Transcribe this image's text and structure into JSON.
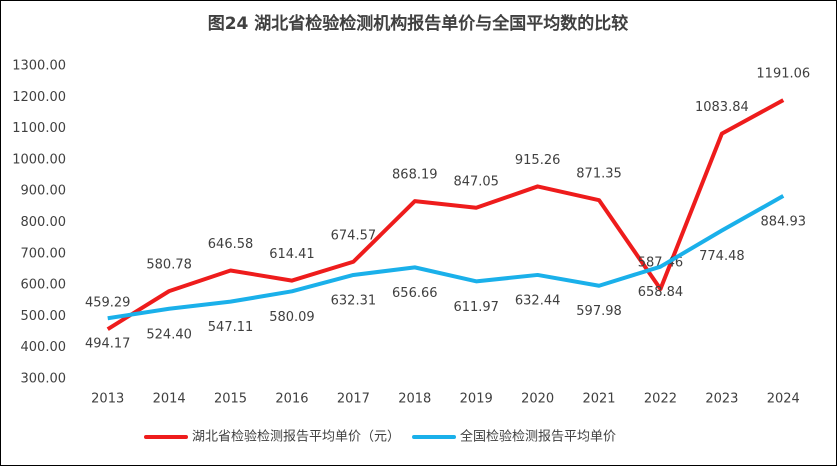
{
  "chart_data": {
    "type": "line",
    "title": "图24 湖北省检验检测机构报告单价与全国平均数的比较",
    "categories": [
      "2013",
      "2014",
      "2015",
      "2016",
      "2017",
      "2018",
      "2019",
      "2020",
      "2021",
      "2022",
      "2023",
      "2024"
    ],
    "series": [
      {
        "name": "湖北省检验检测报告平均单价（元）",
        "color": "#ee1c1c",
        "values": [
          459.29,
          580.78,
          646.58,
          614.41,
          674.57,
          868.19,
          847.05,
          915.26,
          871.35,
          587.46,
          1083.84,
          1191.06
        ],
        "value_labels": [
          "459.29",
          "580.78",
          "646.58",
          "614.41",
          "674.57",
          "868.19",
          "847.05",
          "915.26",
          "871.35",
          "587.46",
          "1083.84",
          "1191.06"
        ]
      },
      {
        "name": "全国检验检测报告平均单价",
        "color": "#1ab0ea",
        "values": [
          494.17,
          524.4,
          547.11,
          580.09,
          632.31,
          656.66,
          611.97,
          632.44,
          597.98,
          658.84,
          774.48,
          884.93
        ],
        "value_labels": [
          "494.17",
          "524.40",
          "547.11",
          "580.09",
          "632.31",
          "656.66",
          "611.97",
          "632.44",
          "597.98",
          "658.84",
          "774.48",
          "884.93"
        ]
      }
    ],
    "ylim": [
      300,
      1300
    ],
    "yticks": [
      {
        "value": 300,
        "label": "300.00"
      },
      {
        "value": 400,
        "label": "400.00"
      },
      {
        "value": 500,
        "label": "500.00"
      },
      {
        "value": 600,
        "label": "600.00"
      },
      {
        "value": 700,
        "label": "700.00"
      },
      {
        "value": 800,
        "label": "800.00"
      },
      {
        "value": 900,
        "label": "900.00"
      },
      {
        "value": 1000,
        "label": "1000.00"
      },
      {
        "value": 1100,
        "label": "1100.00"
      },
      {
        "value": 1200,
        "label": "1200.00"
      },
      {
        "value": 1300,
        "label": "1300.00"
      }
    ],
    "grid": false,
    "legend": "bottom"
  }
}
